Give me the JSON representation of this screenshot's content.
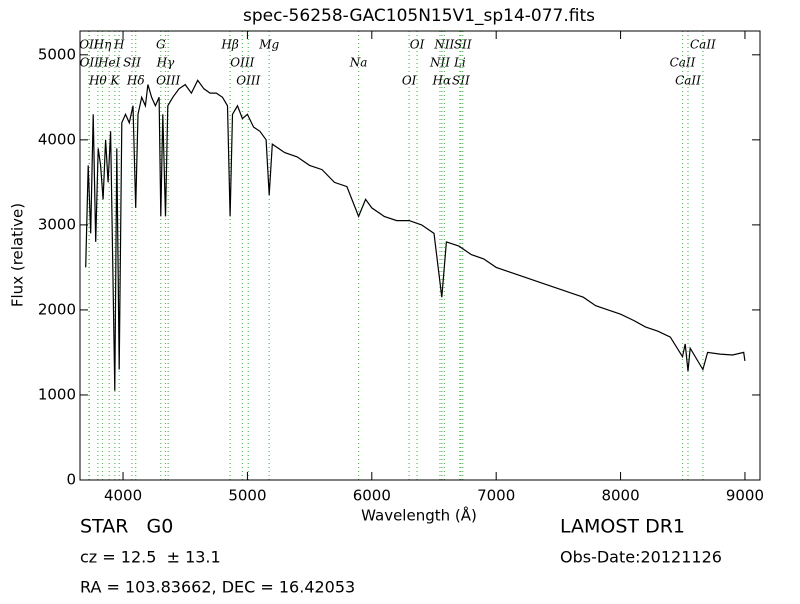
{
  "chart_data": {
    "type": "line",
    "title": "spec-56258-GAC105N15V1_sp14-077.fits",
    "x_label": "Wavelength (Å)",
    "y_label": "Flux (relative)",
    "xlim": [
      3654,
      9121
    ],
    "ylim": [
      0,
      5280
    ],
    "xticks": [
      4000,
      5000,
      6000,
      7000,
      8000,
      9000
    ],
    "yticks": [
      0,
      1000,
      2000,
      3000,
      4000,
      5000
    ],
    "series": [
      {
        "color": "#000000",
        "x": [
          3700,
          3720,
          3740,
          3760,
          3780,
          3800,
          3820,
          3840,
          3860,
          3880,
          3900,
          3934,
          3950,
          3969,
          3990,
          4020,
          4050,
          4080,
          4102,
          4120,
          4150,
          4180,
          4200,
          4230,
          4260,
          4290,
          4304,
          4320,
          4341,
          4360,
          4400,
          4450,
          4500,
          4550,
          4600,
          4650,
          4700,
          4750,
          4800,
          4840,
          4861,
          4880,
          4920,
          4960,
          5000,
          5050,
          5100,
          5150,
          5175,
          5200,
          5250,
          5300,
          5400,
          5500,
          5600,
          5700,
          5800,
          5894,
          5950,
          6000,
          6100,
          6200,
          6300,
          6400,
          6500,
          6563,
          6600,
          6700,
          6800,
          6900,
          7000,
          7100,
          7200,
          7300,
          7400,
          7500,
          7600,
          7700,
          7800,
          7900,
          8000,
          8100,
          8200,
          8300,
          8400,
          8498,
          8520,
          8542,
          8560,
          8662,
          8700,
          8800,
          8900,
          8990,
          9000
        ],
        "values": [
          2500,
          3700,
          2900,
          4300,
          2800,
          3900,
          3700,
          3300,
          4000,
          3500,
          4100,
          1050,
          3900,
          1300,
          4200,
          4300,
          4200,
          4400,
          3200,
          4300,
          4500,
          4400,
          4650,
          4500,
          4400,
          4500,
          3100,
          4300,
          3100,
          4400,
          4500,
          4600,
          4650,
          4550,
          4700,
          4600,
          4550,
          4550,
          4500,
          4400,
          3100,
          4300,
          4400,
          4250,
          4300,
          4150,
          4100,
          4000,
          3350,
          3950,
          3900,
          3850,
          3800,
          3700,
          3650,
          3500,
          3450,
          3100,
          3300,
          3200,
          3100,
          3050,
          3050,
          3000,
          2900,
          2150,
          2800,
          2750,
          2650,
          2600,
          2500,
          2450,
          2400,
          2350,
          2300,
          2250,
          2200,
          2150,
          2050,
          2000,
          1950,
          1880,
          1800,
          1750,
          1680,
          1450,
          1600,
          1280,
          1550,
          1300,
          1500,
          1480,
          1470,
          1500,
          1400
        ]
      }
    ],
    "line_color": "#5cb85c",
    "lines": [
      {
        "wavelength": 3726,
        "label": "OII"
      },
      {
        "wavelength": 3729,
        "label": "OII"
      },
      {
        "wavelength": 3798,
        "label": "Hθ"
      },
      {
        "wavelength": 3835,
        "label": "Hη"
      },
      {
        "wavelength": 3889,
        "label": "HeI"
      },
      {
        "wavelength": 3934,
        "label": "K"
      },
      {
        "wavelength": 3969,
        "label": "H"
      },
      {
        "wavelength": 4072,
        "label": "SII"
      },
      {
        "wavelength": 4102,
        "label": "Hδ"
      },
      {
        "wavelength": 4304,
        "label": "G"
      },
      {
        "wavelength": 4341,
        "label": "Hγ"
      },
      {
        "wavelength": 4363,
        "label": "OIII"
      },
      {
        "wavelength": 4861,
        "label": "Hβ"
      },
      {
        "wavelength": 4959,
        "label": "OIII"
      },
      {
        "wavelength": 5007,
        "label": "OIII"
      },
      {
        "wavelength": 5175,
        "label": "Mg"
      },
      {
        "wavelength": 5894,
        "label": "Na"
      },
      {
        "wavelength": 6300,
        "label": "OI"
      },
      {
        "wavelength": 6364,
        "label": "OI"
      },
      {
        "wavelength": 6548,
        "label": "NII"
      },
      {
        "wavelength": 6563,
        "label": "Hα"
      },
      {
        "wavelength": 6583,
        "label": "NII"
      },
      {
        "wavelength": 6708,
        "label": "Li"
      },
      {
        "wavelength": 6716,
        "label": "SII"
      },
      {
        "wavelength": 6731,
        "label": "SII"
      },
      {
        "wavelength": 8498,
        "label": "CaII"
      },
      {
        "wavelength": 8542,
        "label": "CaII"
      },
      {
        "wavelength": 8662,
        "label": "CaII"
      }
    ]
  },
  "info": {
    "class": "STAR   G0",
    "redshift": "cz = 12.5  ± 13.1",
    "coords": "RA = 103.83662, DEC = 16.42053",
    "survey": "LAMOST DR1",
    "date": "Obs-Date:20121126"
  }
}
